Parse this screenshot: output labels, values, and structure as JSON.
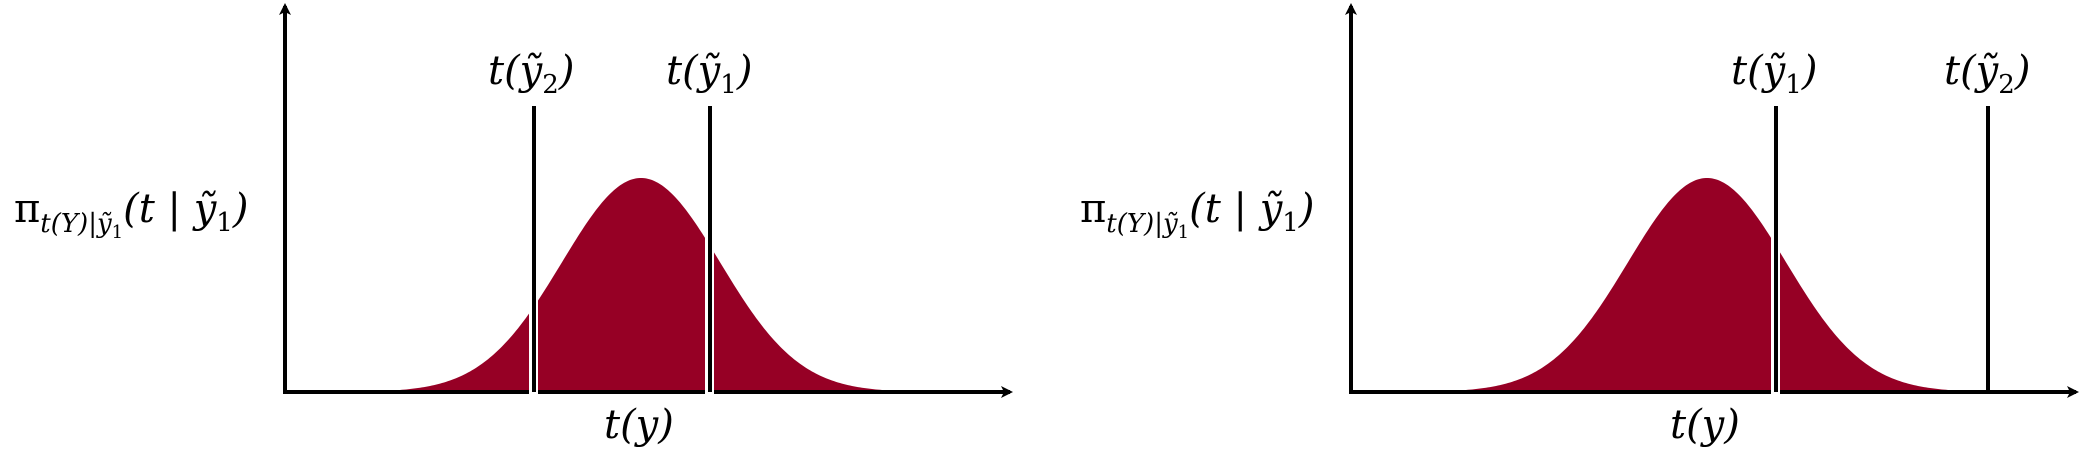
{
  "colors": {
    "fill": "#960025",
    "line": "#000000",
    "gap": "#ffffff"
  },
  "panels": [
    {
      "id": "left",
      "density_label": {
        "pi": "π",
        "sub": "t(Y)|ỹ",
        "subsub": "1",
        "args": "(t | ỹ",
        "args_sub": "1",
        "close": ")"
      },
      "x_label": "t(y)",
      "markers": [
        {
          "label": "t(ỹ",
          "sub": "2",
          "close": ")"
        },
        {
          "label": "t(ỹ",
          "sub": "1",
          "close": ")"
        }
      ]
    },
    {
      "id": "right",
      "density_label": {
        "pi": "π",
        "sub": "t(Y)|ỹ",
        "subsub": "1",
        "args": "(t | ỹ",
        "args_sub": "1",
        "close": ")"
      },
      "x_label": "t(y)",
      "markers": [
        {
          "label": "t(ỹ",
          "sub": "1",
          "close": ")"
        },
        {
          "label": "t(ỹ",
          "sub": "2",
          "close": ")"
        }
      ]
    }
  ]
}
